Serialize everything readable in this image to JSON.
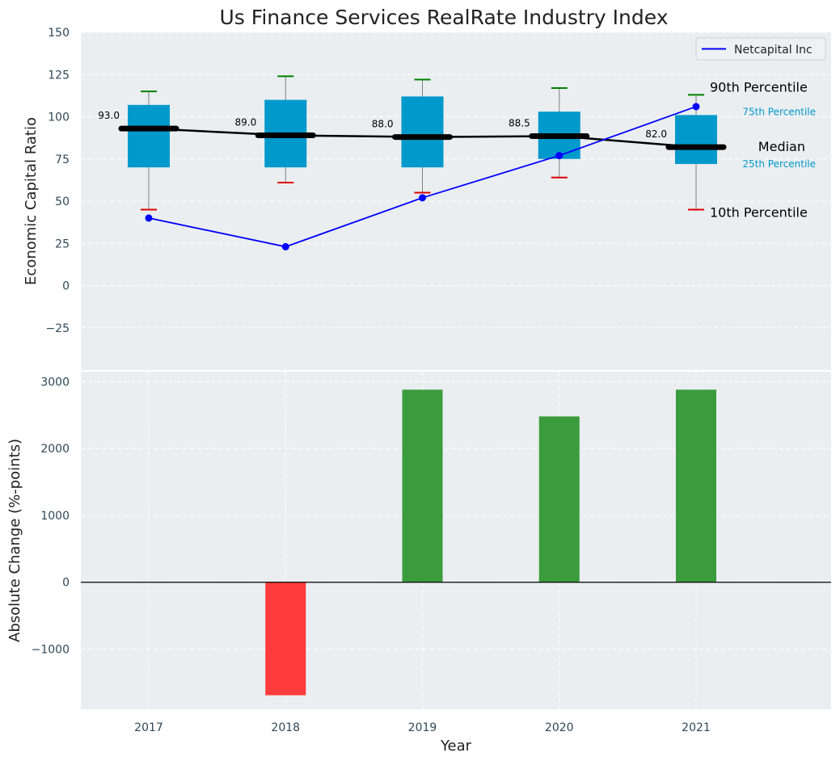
{
  "chart_data": [
    {
      "type": "box-percentile",
      "title": "Us Finance Services RealRate Industry Index",
      "ylabel": "Economic Capital Ratio",
      "ylim": [
        -50,
        150
      ],
      "yticks": [
        -25,
        0,
        25,
        50,
        75,
        100,
        125,
        150
      ],
      "ytick_labels": [
        "−25",
        "0",
        "25",
        "50",
        "75",
        "100",
        "125",
        "150"
      ],
      "categories": [
        "2017",
        "2018",
        "2019",
        "2020",
        "2021"
      ],
      "p10": [
        45,
        61,
        55,
        64,
        45
      ],
      "p25": [
        70,
        70,
        70,
        75,
        72
      ],
      "median": [
        93.0,
        89.0,
        88.0,
        88.5,
        82.0
      ],
      "median_labels": [
        "93.0",
        "89.0",
        "88.0",
        "88.5",
        "82.0"
      ],
      "p75": [
        107,
        110,
        112,
        103,
        101
      ],
      "p90": [
        115,
        124,
        122,
        117,
        113
      ],
      "company": {
        "name": "Netcapital Inc",
        "values": [
          40,
          23,
          52,
          77,
          106
        ],
        "color": "#0000ff"
      },
      "legend": {
        "label": "Netcapital Inc",
        "position": "top-right"
      },
      "annotations": {
        "p90": "90th Percentile",
        "p75": "75th Percentile",
        "median": "Median",
        "p25": "25th Percentile",
        "p10": "10th Percentile"
      },
      "colors": {
        "box": "#0099cc",
        "p90_whisker": "#008000",
        "p10_whisker": "#dd0000",
        "median_line": "#000000",
        "small_label": "#0099cc"
      },
      "grid": true
    },
    {
      "type": "bar",
      "xlabel": "Year",
      "ylabel": "Absolute Change (%-points)",
      "ylim": [
        -1900,
        3150
      ],
      "yticks": [
        -1000,
        0,
        1000,
        2000,
        3000
      ],
      "ytick_labels": [
        "−1000",
        "0",
        "1000",
        "2000",
        "3000"
      ],
      "categories": [
        "2017",
        "2018",
        "2019",
        "2020",
        "2021"
      ],
      "values": [
        0,
        -1690,
        2880,
        2480,
        2880
      ],
      "colors": {
        "positive": "#3a9c3c",
        "negative": "#ff3b3b"
      },
      "grid": true
    }
  ]
}
